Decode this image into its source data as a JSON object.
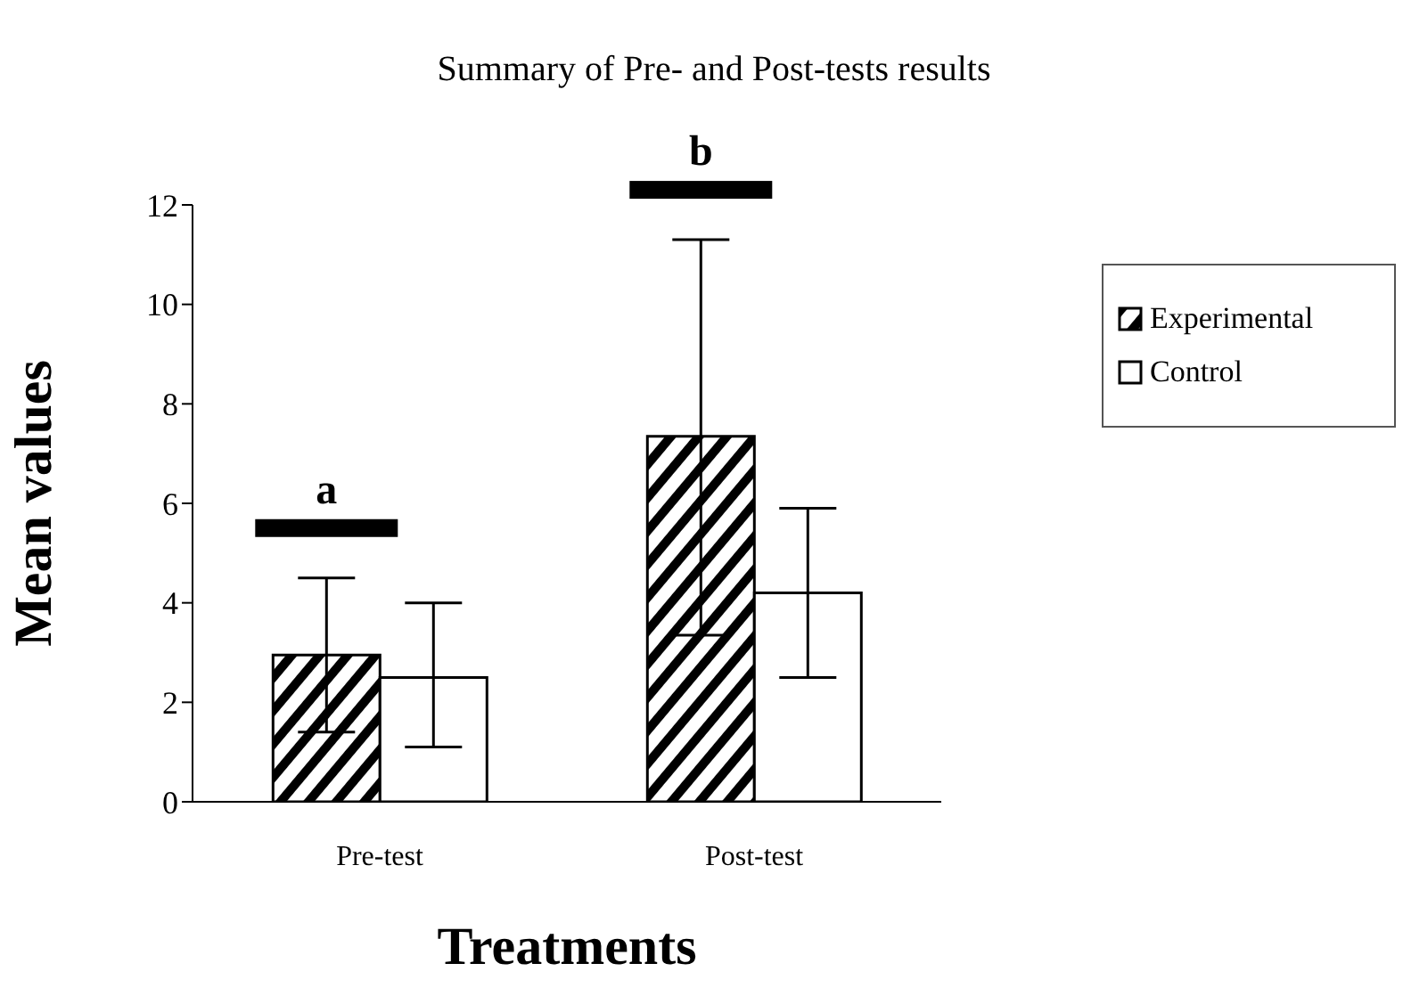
{
  "chart_data": {
    "type": "bar",
    "title": "Summary of Pre- and Post-tests results",
    "xlabel": "Treatments",
    "ylabel": "Mean values",
    "categories": [
      "Pre-test",
      "Post-test"
    ],
    "series": [
      {
        "name": "Experimental",
        "color": "#000000",
        "values": [
          2.95,
          7.35
        ],
        "errors": [
          [
            1.4,
            4.5
          ],
          [
            3.35,
            11.3
          ]
        ]
      },
      {
        "name": "Control",
        "color": "#ffffff",
        "values": [
          2.5,
          4.2
        ],
        "errors": [
          [
            1.1,
            4.0
          ],
          [
            2.5,
            5.9
          ]
        ]
      }
    ],
    "annotations": [
      "a",
      "b"
    ],
    "ylim": [
      0,
      12
    ],
    "yticks": [
      0,
      2,
      4,
      6,
      8,
      10,
      12
    ],
    "legend": "right"
  }
}
